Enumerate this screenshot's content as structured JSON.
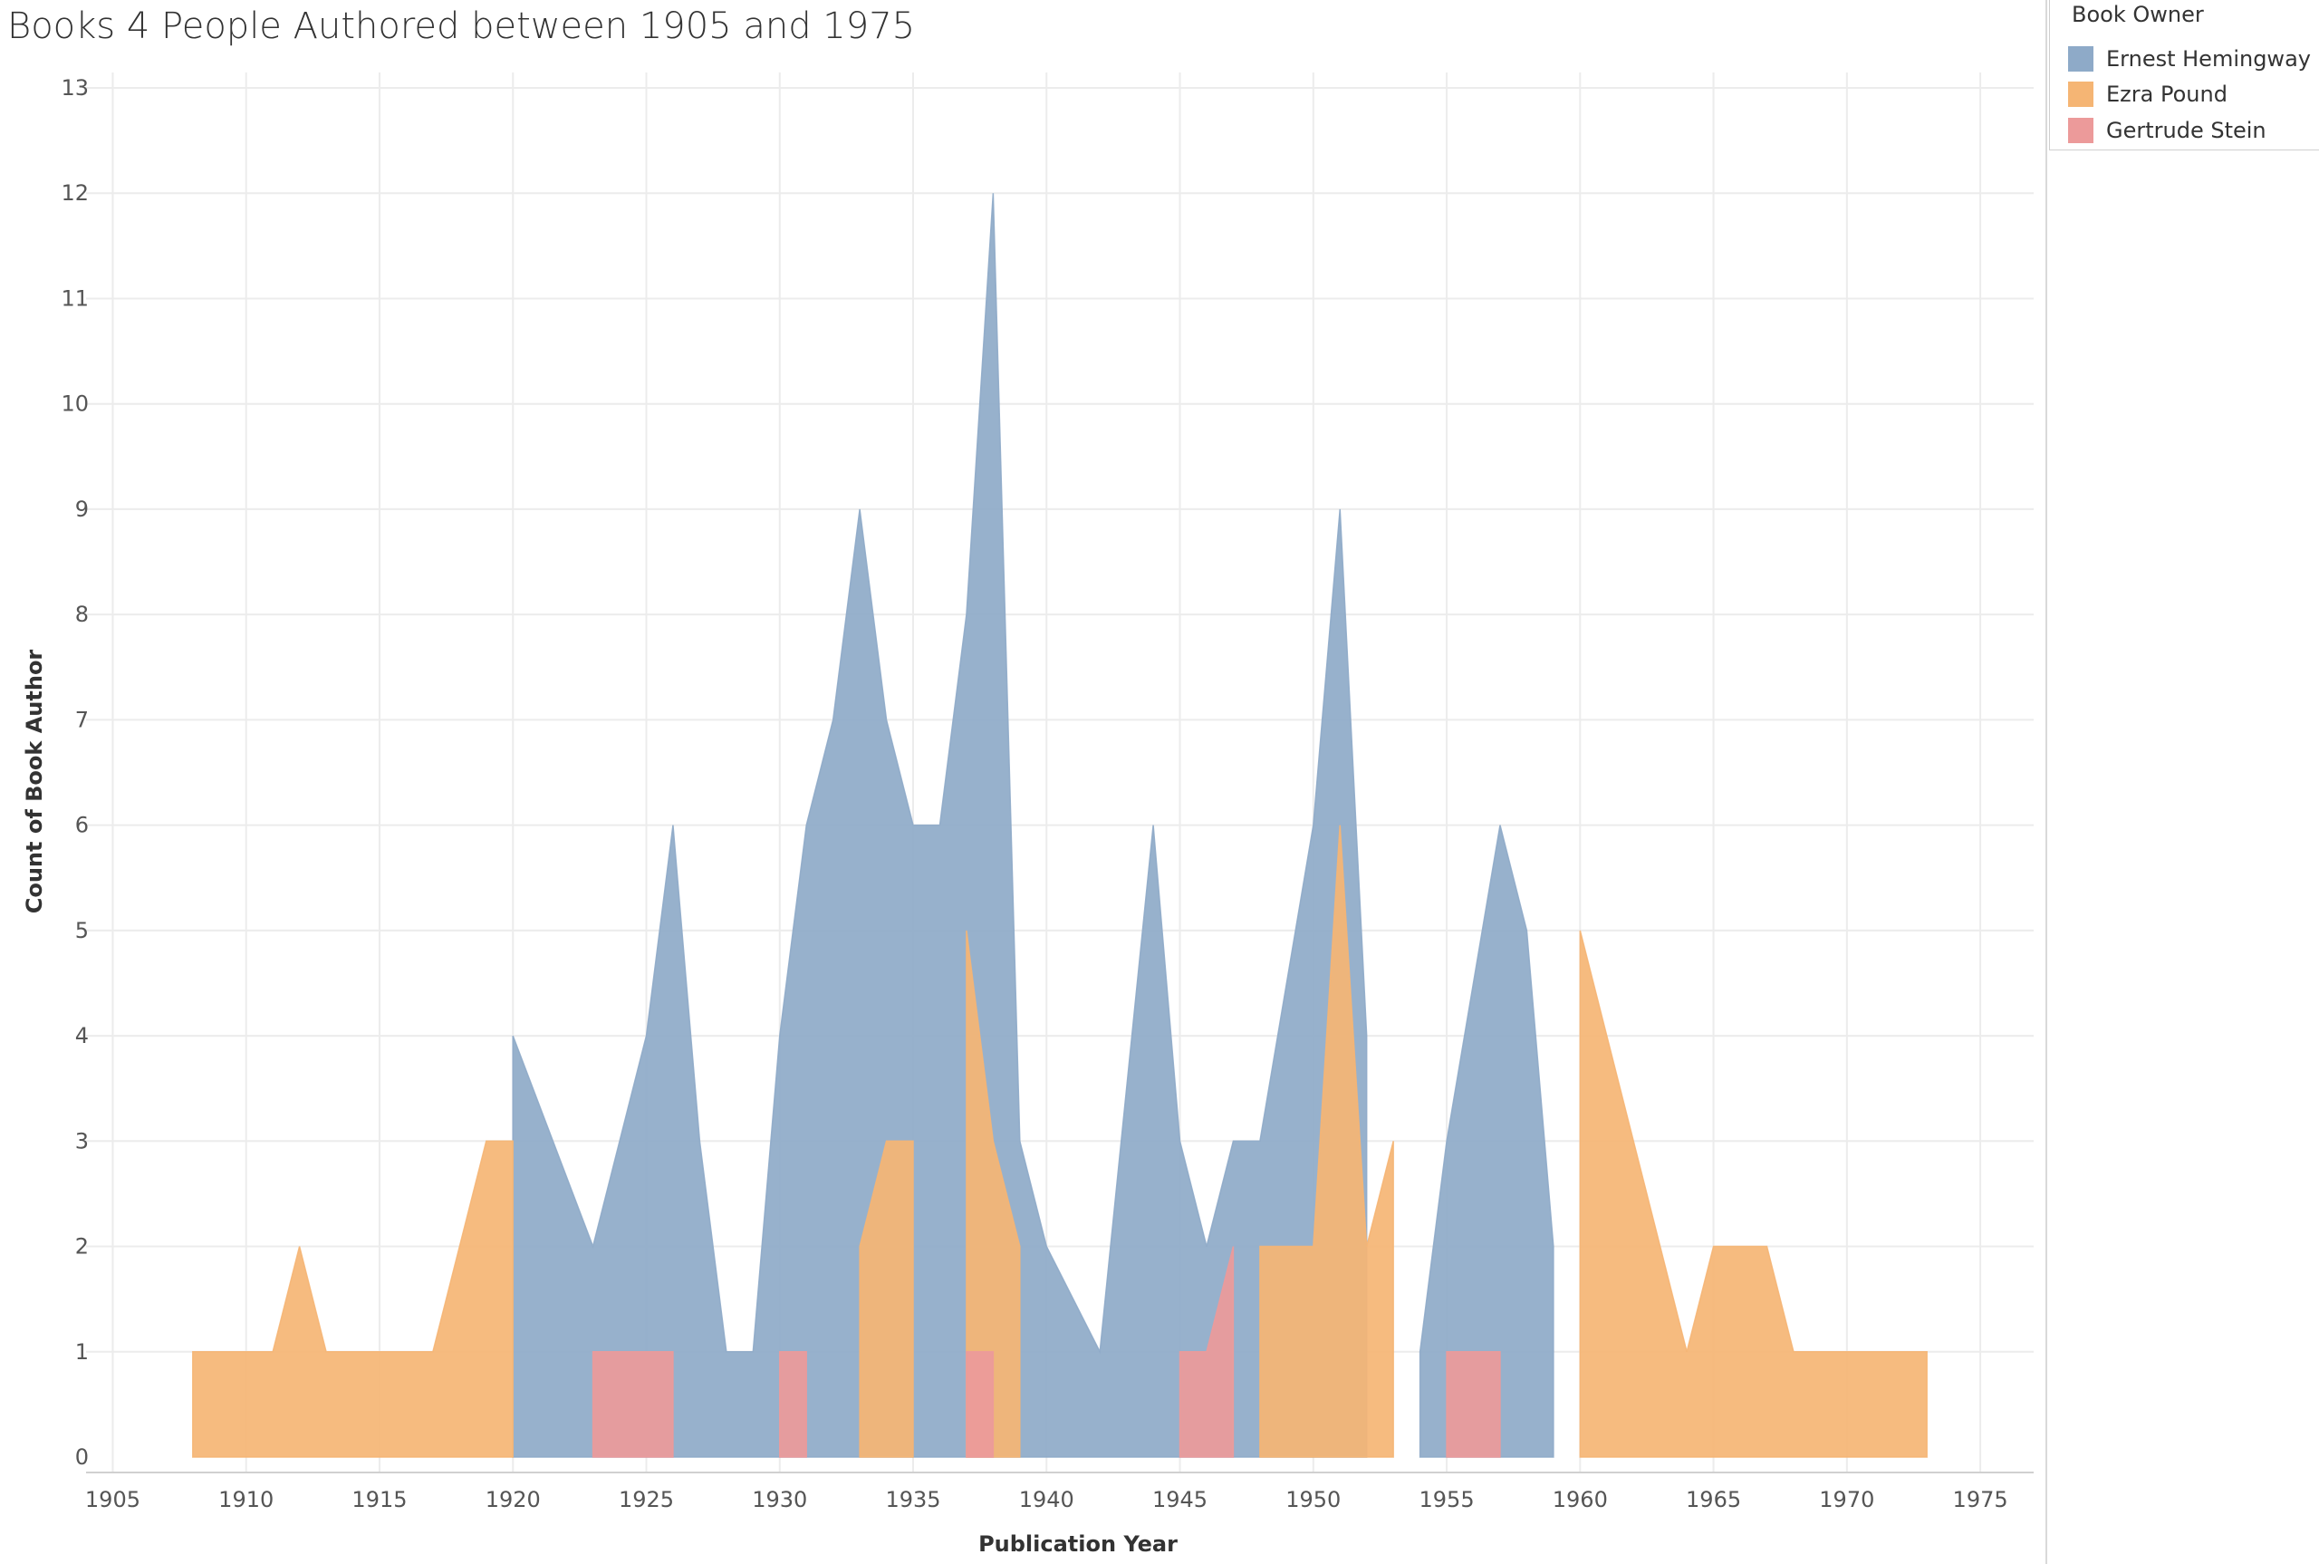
{
  "chart_data": {
    "type": "area",
    "title": "Books 4 People Authored between 1905 and 1975",
    "xlabel": "Publication Year",
    "ylabel": "Count of Book Author",
    "xlim": [
      1904,
      1977
    ],
    "ylim": [
      0,
      13
    ],
    "xticks": [
      1905,
      1910,
      1915,
      1920,
      1925,
      1930,
      1935,
      1940,
      1945,
      1950,
      1955,
      1960,
      1965,
      1970,
      1975
    ],
    "yticks": [
      0,
      1,
      2,
      3,
      4,
      5,
      6,
      7,
      8,
      9,
      10,
      11,
      12,
      13
    ],
    "grid": true,
    "legend_position": "top-right",
    "legend_title": "Book Owner",
    "series": [
      {
        "name": "Ernest Hemingway",
        "color": "#8eaac8",
        "segments": [
          [
            [
              1920,
              4
            ],
            [
              1923,
              2
            ],
            [
              1925,
              4
            ],
            [
              1926,
              6
            ],
            [
              1927,
              3
            ],
            [
              1928,
              1
            ],
            [
              1929,
              1
            ],
            [
              1930,
              4
            ],
            [
              1931,
              6
            ],
            [
              1932,
              7
            ],
            [
              1933,
              9
            ],
            [
              1934,
              7
            ],
            [
              1935,
              6
            ],
            [
              1936,
              6
            ],
            [
              1937,
              8
            ],
            [
              1938,
              12
            ],
            [
              1939,
              3
            ],
            [
              1940,
              2
            ],
            [
              1942,
              1
            ],
            [
              1944,
              6
            ],
            [
              1945,
              3
            ],
            [
              1946,
              2
            ],
            [
              1947,
              3
            ],
            [
              1948,
              3
            ],
            [
              1950,
              6
            ],
            [
              1951,
              9
            ],
            [
              1952,
              4
            ]
          ],
          [
            [
              1954,
              1
            ],
            [
              1955,
              3
            ],
            [
              1957,
              6
            ],
            [
              1958,
              5
            ],
            [
              1959,
              2
            ]
          ]
        ]
      },
      {
        "name": "Ezra Pound",
        "color": "#f5b574",
        "segments": [
          [
            [
              1908,
              1
            ],
            [
              1911,
              1
            ],
            [
              1912,
              2
            ],
            [
              1913,
              1
            ],
            [
              1917,
              1
            ],
            [
              1919,
              3
            ],
            [
              1920,
              3
            ]
          ],
          [
            [
              1933,
              2
            ],
            [
              1934,
              3
            ],
            [
              1935,
              3
            ]
          ],
          [
            [
              1937,
              5
            ],
            [
              1938,
              3
            ],
            [
              1939,
              2
            ]
          ],
          [
            [
              1948,
              2
            ],
            [
              1950,
              2
            ],
            [
              1951,
              6
            ],
            [
              1952,
              2
            ],
            [
              1953,
              3
            ]
          ],
          [
            [
              1960,
              5
            ],
            [
              1964,
              1
            ],
            [
              1965,
              2
            ],
            [
              1967,
              2
            ],
            [
              1968,
              1
            ],
            [
              1973,
              1
            ]
          ]
        ]
      },
      {
        "name": "Gertrude Stein",
        "color": "#ec9a9a",
        "segments": [
          [
            [
              1923,
              1
            ],
            [
              1926,
              1
            ]
          ],
          [
            [
              1930,
              1
            ],
            [
              1931,
              1
            ]
          ],
          [
            [
              1937,
              1
            ],
            [
              1938,
              1
            ]
          ],
          [
            [
              1945,
              1
            ],
            [
              1946,
              1
            ],
            [
              1947,
              2
            ]
          ],
          [
            [
              1955,
              1
            ],
            [
              1957,
              1
            ]
          ]
        ]
      }
    ]
  }
}
